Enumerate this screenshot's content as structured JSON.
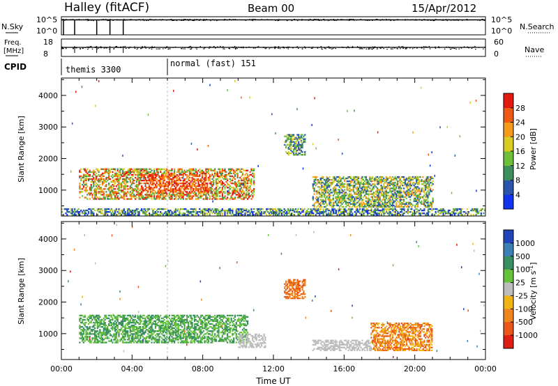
{
  "header": {
    "station": "Halley (fitACF)",
    "beam": "Beam 00",
    "date": "15/Apr/2012"
  },
  "top_panels": {
    "nsky_label": "N.Sky",
    "nsearch_label": "N.Search",
    "nsky_ticks": [
      "10^5",
      "10^0"
    ],
    "nsearch_ticks": [
      "10^5",
      "10^0"
    ],
    "freq_label_1": "Freq.",
    "freq_label_2": "[MHz]",
    "freq_ticks": [
      "18",
      "8"
    ],
    "nave_label": "Nave",
    "nave_ticks": [
      "60",
      "0"
    ],
    "cpid_label": "CPID",
    "cpid_entries": [
      {
        "label": "themis 3300",
        "start_hour": 0
      },
      {
        "label": "normal (fast) 151",
        "start_hour": 6
      }
    ],
    "nsky_mode_change_hours": [
      0.75,
      2.0,
      2.75,
      3.5
    ]
  },
  "chart_data": [
    {
      "type": "heatmap",
      "name": "power",
      "ylabel": "Slant Range [km]",
      "xlim": [
        0,
        24
      ],
      "ylim": [
        180,
        4550
      ],
      "yticks": [
        1000,
        2000,
        3000,
        4000
      ],
      "colorbar": {
        "label": "Power [dB]",
        "range": [
          0,
          32
        ],
        "tick_labels": [
          "4",
          "8",
          "12",
          "16",
          "20",
          "24",
          "28"
        ],
        "colors": [
          "#1133ee",
          "#2a55aa",
          "#3f8f5c",
          "#6fbf3a",
          "#d9cc22",
          "#f59a1a",
          "#ef5a12",
          "#e31a0f"
        ]
      },
      "regions": [
        {
          "hours": [
            1,
            10.9
          ],
          "range_km": [
            700,
            1650
          ],
          "peak_range_km": [
            900,
            1500
          ],
          "level": "12-28 dB"
        },
        {
          "hours": [
            12.6,
            13.8
          ],
          "range_km": [
            2100,
            2750
          ],
          "level": "8-16 dB"
        },
        {
          "hours": [
            14.2,
            21
          ],
          "range_km": [
            450,
            1400
          ],
          "level": "8-20 dB"
        },
        {
          "hours": [
            0,
            24
          ],
          "range_km": [
            200,
            400
          ],
          "level": "4-16 dB (near range)"
        }
      ]
    },
    {
      "type": "heatmap",
      "name": "velocity",
      "xlabel": "Time UT",
      "ylabel": "Slant Range [km]",
      "xlim": [
        0,
        24
      ],
      "xticks": [
        "00:00",
        "04:00",
        "08:00",
        "12:00",
        "16:00",
        "20:00",
        "00:00"
      ],
      "ylim": [
        180,
        4550
      ],
      "yticks": [
        1000,
        2000,
        3000,
        4000
      ],
      "colorbar": {
        "label": "Velocity [m s^-1]",
        "tick_labels": [
          "1000",
          "500",
          "100",
          "25",
          "-25",
          "-100",
          "-500",
          "-1000"
        ],
        "colors": [
          "#2244bb",
          "#3b7fb5",
          "#3a8f62",
          "#66c23b",
          "#bdbdbd",
          "#f0b515",
          "#f0851c",
          "#e8561a",
          "#e01f14"
        ]
      },
      "regions": [
        {
          "hours": [
            1,
            10.5
          ],
          "range_km": [
            700,
            1600
          ],
          "velocity": "100 to 500 m/s"
        },
        {
          "hours": [
            10,
            11.5
          ],
          "range_km": [
            550,
            1000
          ],
          "velocity": "-25 to 25 m/s"
        },
        {
          "hours": [
            12.6,
            13.8
          ],
          "range_km": [
            2100,
            2700
          ],
          "velocity": "-100 to -500 m/s"
        },
        {
          "hours": [
            14.2,
            17.5
          ],
          "range_km": [
            450,
            800
          ],
          "velocity": "-25 to 25 m/s"
        },
        {
          "hours": [
            17.5,
            21
          ],
          "range_km": [
            450,
            1350
          ],
          "velocity": "-100 to -500 m/s"
        }
      ]
    }
  ]
}
